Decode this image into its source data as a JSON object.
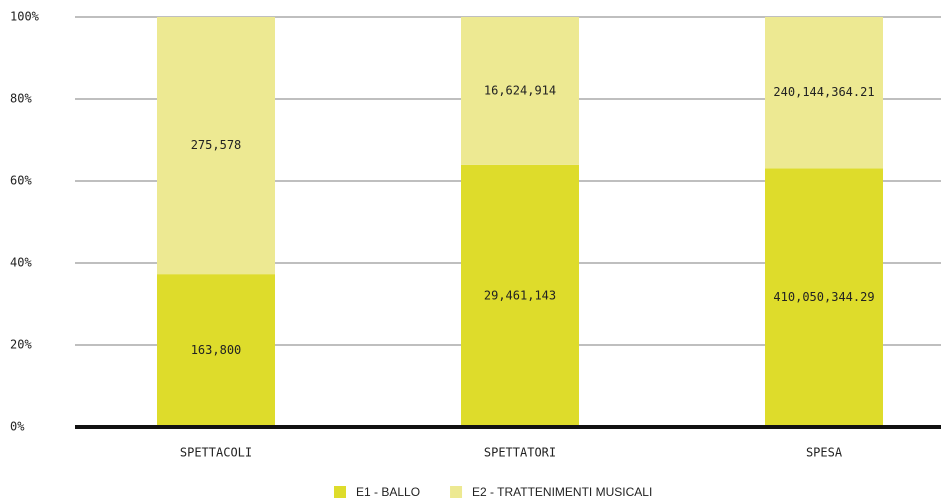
{
  "chart_data": {
    "type": "bar",
    "stacked": "percent",
    "categories": [
      "SPETTACOLI",
      "SPETTATORI",
      "SPESA"
    ],
    "series": [
      {
        "name": "E1 - BALLO",
        "color": "#dedc2b",
        "values": [
          163800,
          29461143,
          410050344.29
        ],
        "value_labels": [
          "163,800",
          "29,461,143",
          "410,050,344.29"
        ]
      },
      {
        "name": "E2 - TRATTENIMENTI MUSICALI",
        "color": "#ede992",
        "values": [
          275578,
          16624914,
          240144364.21
        ],
        "value_labels": [
          "275,578",
          "16,624,914",
          "240,144,364.21"
        ]
      }
    ],
    "ylim": [
      0,
      100
    ],
    "yticks": [
      {
        "value": 0,
        "label": "0%"
      },
      {
        "value": 20,
        "label": "20%"
      },
      {
        "value": 40,
        "label": "40%"
      },
      {
        "value": 60,
        "label": "60%"
      },
      {
        "value": 80,
        "label": "80%"
      },
      {
        "value": 100,
        "label": "100%"
      }
    ],
    "grid": true,
    "legend": "bottom"
  }
}
